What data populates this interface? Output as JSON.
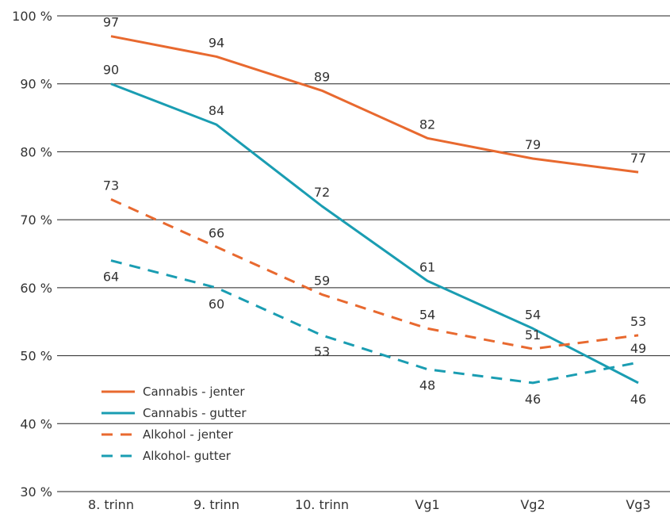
{
  "chart_data": {
    "type": "line",
    "title": "",
    "xlabel": "",
    "ylabel": "",
    "ylim": [
      30,
      100
    ],
    "yticks": [
      30,
      40,
      50,
      60,
      70,
      80,
      90,
      100
    ],
    "ytick_labels": [
      "30 %",
      "40 %",
      "50 %",
      "60 %",
      "70 %",
      "80 %",
      "90 %",
      "100 %"
    ],
    "grid": "horizontal",
    "legend_position": "bottom-left",
    "categories": [
      "8. trinn",
      "9. trinn",
      "10. trinn",
      "Vg1",
      "Vg2",
      "Vg3"
    ],
    "series": [
      {
        "name": "Cannabis - jenter",
        "values": [
          97,
          94,
          89,
          82,
          79,
          77
        ],
        "color": "#E8692F",
        "dash": "solid",
        "label_pos": [
          "above",
          "above",
          "above",
          "above",
          "above",
          "above"
        ]
      },
      {
        "name": "Cannabis - gutter",
        "values": [
          90,
          84,
          72,
          61,
          54,
          46
        ],
        "color": "#1A9DB2",
        "dash": "solid",
        "label_pos": [
          "above",
          "above",
          "above",
          "above",
          "above",
          "below"
        ]
      },
      {
        "name": "Alkohol - jenter",
        "values": [
          73,
          66,
          59,
          54,
          51,
          53
        ],
        "color": "#E8692F",
        "dash": "dashed",
        "label_pos": [
          "above",
          "above",
          "above",
          "above",
          "above",
          "above"
        ]
      },
      {
        "name": "Alkohol- gutter",
        "values": [
          64,
          60,
          53,
          48,
          46,
          49
        ],
        "color": "#1A9DB2",
        "dash": "dashed",
        "label_pos": [
          "below",
          "below",
          "below",
          "below",
          "below",
          "above"
        ]
      }
    ]
  }
}
